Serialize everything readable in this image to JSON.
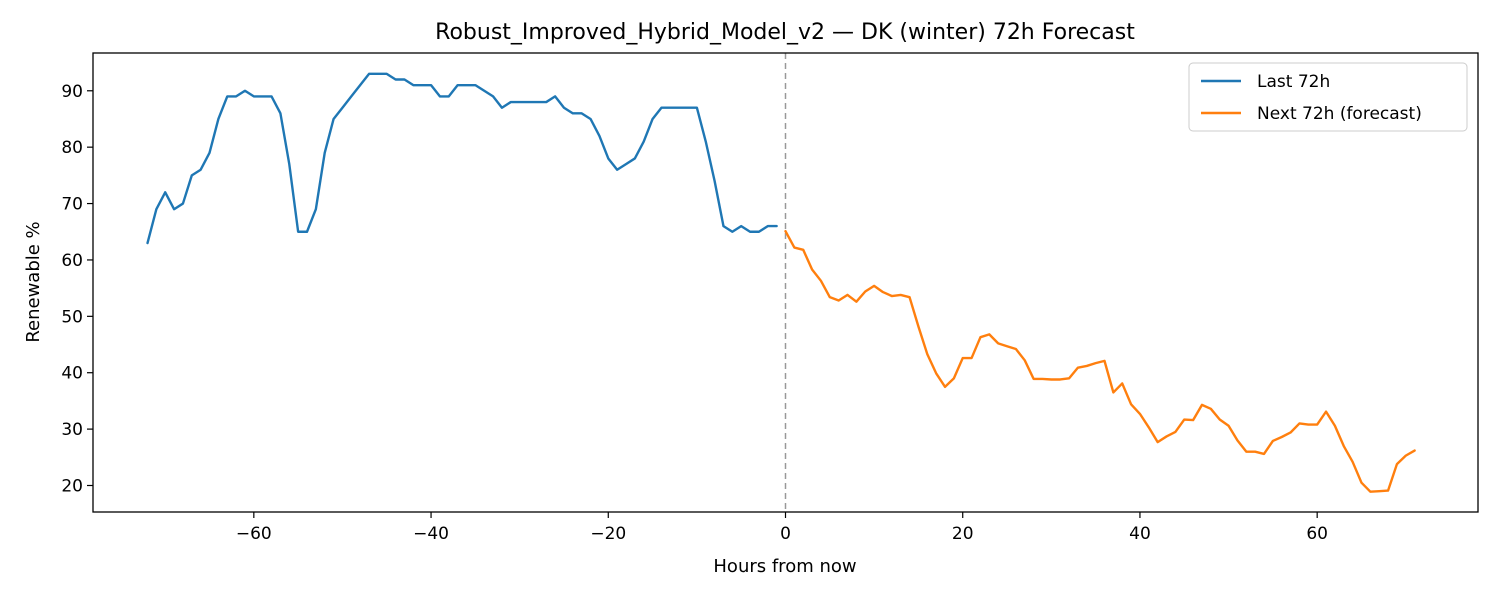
{
  "chart_data": {
    "type": "line",
    "title": "Robust_Improved_Hybrid_Model_v2 — DK (winter) 72h Forecast",
    "xlabel": "Hours from now",
    "ylabel": "Renewable %",
    "xlim": [
      -78.15,
      78.15
    ],
    "ylim": [
      15.3,
      96.7
    ],
    "xticks": [
      -60,
      -40,
      -20,
      0,
      20,
      40,
      60
    ],
    "xtick_labels": [
      "−60",
      "−40",
      "−20",
      "0",
      "20",
      "40",
      "60"
    ],
    "yticks": [
      20,
      30,
      40,
      50,
      60,
      70,
      80,
      90
    ],
    "ytick_labels": [
      "20",
      "30",
      "40",
      "50",
      "60",
      "70",
      "80",
      "90"
    ],
    "grid": false,
    "legend_position": "top-right",
    "vline": {
      "x": 0,
      "style": "dashed",
      "color": "#999999"
    },
    "series": [
      {
        "name": "Last 72h",
        "color": "#1f77b4",
        "x": [
          -72,
          -71,
          -70,
          -69,
          -68,
          -67,
          -66,
          -65,
          -64,
          -63,
          -62,
          -61,
          -60,
          -59,
          -58,
          -57,
          -56,
          -55,
          -54,
          -53,
          -52,
          -51,
          -50,
          -49,
          -48,
          -47,
          -46,
          -45,
          -44,
          -43,
          -42,
          -41,
          -40,
          -39,
          -38,
          -37,
          -36,
          -35,
          -34,
          -33,
          -32,
          -31,
          -30,
          -29,
          -28,
          -27,
          -26,
          -25,
          -24,
          -23,
          -22,
          -21,
          -20,
          -19,
          -18,
          -17,
          -16,
          -15,
          -14,
          -13,
          -12,
          -11,
          -10,
          -9,
          -8,
          -7,
          -6,
          -5,
          -4,
          -3,
          -2,
          -1
        ],
        "y": [
          63,
          69,
          72,
          69,
          70,
          75,
          76,
          79,
          85,
          89,
          89,
          90,
          89,
          89,
          89,
          86,
          77,
          65,
          65,
          69,
          79,
          85,
          87,
          89,
          91,
          93,
          93,
          93,
          92,
          92,
          91,
          91,
          91,
          89,
          89,
          91,
          91,
          91,
          90,
          89,
          87,
          88,
          88,
          88,
          88,
          88,
          89,
          87,
          86,
          86,
          85,
          82,
          78,
          76,
          77,
          78,
          81,
          85,
          87,
          87,
          87,
          87,
          87,
          81,
          74,
          66,
          65,
          66,
          65,
          65,
          66,
          66
        ]
      },
      {
        "name": "Next 72h (forecast)",
        "color": "#ff7f0e",
        "x": [
          0,
          1,
          2,
          3,
          4,
          5,
          6,
          7,
          8,
          9,
          10,
          11,
          12,
          13,
          14,
          15,
          16,
          17,
          18,
          19,
          20,
          21,
          22,
          23,
          24,
          25,
          26,
          27,
          28,
          29,
          30,
          31,
          32,
          33,
          34,
          35,
          36,
          37,
          38,
          39,
          40,
          41,
          42,
          43,
          44,
          45,
          46,
          47,
          48,
          49,
          50,
          51,
          52,
          53,
          54,
          55,
          56,
          57,
          58,
          59,
          60,
          61,
          62,
          63,
          64,
          65,
          66,
          67,
          68,
          69,
          70,
          71
        ],
        "y": [
          65.1,
          62.2,
          61.8,
          58.3,
          56.3,
          53.4,
          52.8,
          53.8,
          52.6,
          54.4,
          55.4,
          54.3,
          53.6,
          53.8,
          53.4,
          48.2,
          43.3,
          39.9,
          37.5,
          39.0,
          42.6,
          42.6,
          46.3,
          46.8,
          45.2,
          44.7,
          44.2,
          42.2,
          38.9,
          38.9,
          38.8,
          38.8,
          39.0,
          40.9,
          41.2,
          41.7,
          42.1,
          36.5,
          38.1,
          34.4,
          32.7,
          30.3,
          27.7,
          28.7,
          29.5,
          31.7,
          31.6,
          34.3,
          33.6,
          31.7,
          30.6,
          28.0,
          26.0,
          26.0,
          25.6,
          27.9,
          28.6,
          29.4,
          31.0,
          30.8,
          30.8,
          33.1,
          30.6,
          27.0,
          24.2,
          20.5,
          18.9,
          19.0,
          19.1,
          23.8,
          25.3,
          26.2
        ]
      }
    ]
  }
}
